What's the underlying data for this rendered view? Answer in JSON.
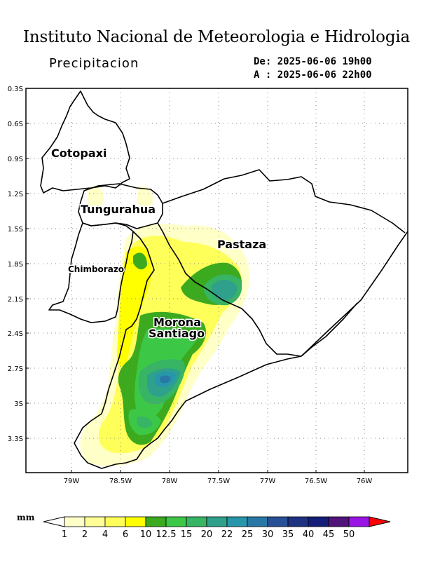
{
  "header": {
    "title": "Instituto Nacional de Meteorologia e Hidrologia",
    "variable": "Precipitacion",
    "date_from": "De: 2025-06-06 19h00",
    "date_to": "A : 2025-06-06 22h00"
  },
  "map": {
    "lat_ticks": [
      "0.3S",
      "0.6S",
      "0.9S",
      "1.2S",
      "1.5S",
      "1.8S",
      "2.1S",
      "2.4S",
      "2.7S",
      "3S",
      "3.3S"
    ],
    "lon_ticks": [
      "79W",
      "78.5W",
      "78W",
      "77.5W",
      "77W",
      "76.5W",
      "76W"
    ],
    "provinces": [
      {
        "name": "Cotopaxi"
      },
      {
        "name": "Tungurahua"
      },
      {
        "name": "Pastaza"
      },
      {
        "name": "Chimborazo"
      },
      {
        "name": "Morona"
      },
      {
        "name": "Santiago"
      }
    ],
    "grid": true
  },
  "colorbar": {
    "unit": "mm",
    "levels": [
      "1",
      "2",
      "4",
      "6",
      "10",
      "12.5",
      "15",
      "20",
      "22",
      "25",
      "30",
      "35",
      "40",
      "45",
      "50"
    ],
    "colors": [
      "#ffffc8",
      "#ffff96",
      "#ffff5a",
      "#ffff00",
      "#3caa1e",
      "#3cc846",
      "#37b464",
      "#2ea08c",
      "#2896aa",
      "#2878a5",
      "#285096",
      "#1e3282",
      "#141e78",
      "#50147a",
      "#9a14e6"
    ],
    "under_color": "#ffffff",
    "over_color": "#ff0000"
  }
}
